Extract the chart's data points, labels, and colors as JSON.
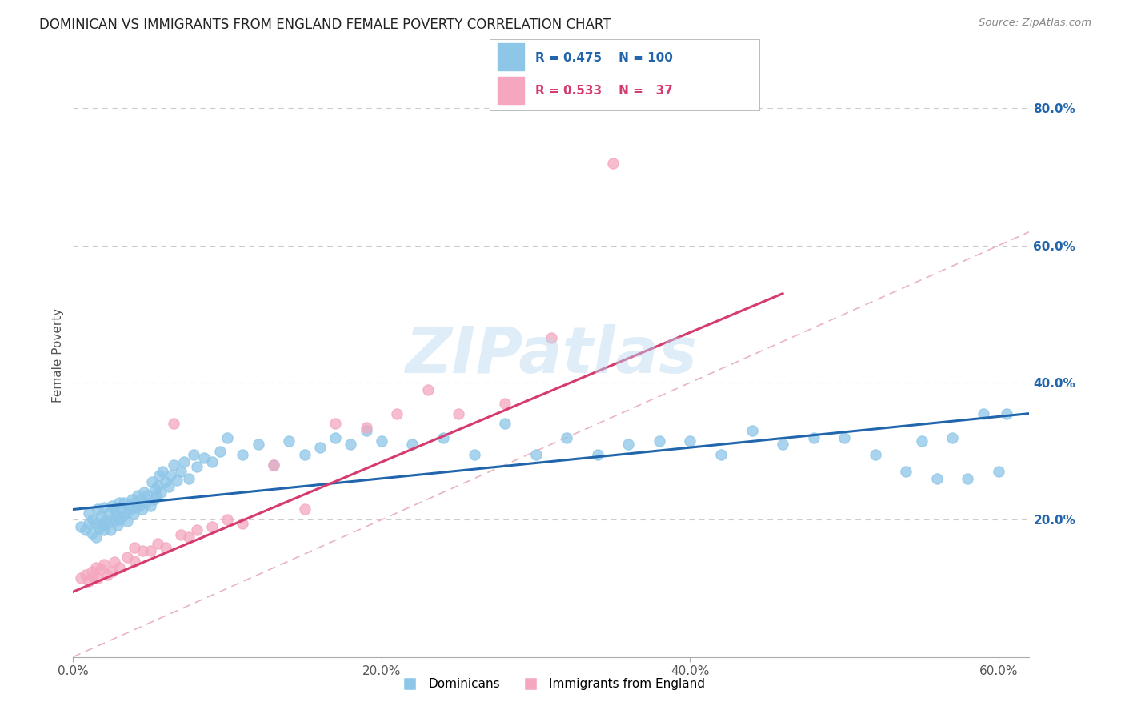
{
  "title": "DOMINICAN VS IMMIGRANTS FROM ENGLAND FEMALE POVERTY CORRELATION CHART",
  "source": "Source: ZipAtlas.com",
  "ylabel": "Female Poverty",
  "xlim": [
    0.0,
    0.62
  ],
  "ylim": [
    0.0,
    0.88
  ],
  "xtick_labels": [
    "0.0%",
    "20.0%",
    "40.0%",
    "60.0%"
  ],
  "xtick_vals": [
    0.0,
    0.2,
    0.4,
    0.6
  ],
  "ytick_labels": [
    "20.0%",
    "40.0%",
    "60.0%",
    "80.0%"
  ],
  "ytick_vals": [
    0.2,
    0.4,
    0.6,
    0.8
  ],
  "color_dominican": "#8ec6e8",
  "color_england": "#f4a7be",
  "line_color_dominican": "#2166ac",
  "line_color_england": "#d63b6e",
  "diagonal_color": "#e8b4c0",
  "R_dominican": 0.475,
  "N_dominican": 100,
  "R_england": 0.533,
  "N_england": 37,
  "legend_label_dominican": "Dominicans",
  "legend_label_england": "Immigrants from England",
  "watermark": "ZIPatlas",
  "dom_line_x0": 0.0,
  "dom_line_y0": 0.215,
  "dom_line_x1": 0.62,
  "dom_line_y1": 0.355,
  "eng_line_x0": 0.0,
  "eng_line_y0": 0.095,
  "eng_line_x1": 0.46,
  "eng_line_y1": 0.53,
  "dominican_x": [
    0.005,
    0.008,
    0.01,
    0.01,
    0.012,
    0.013,
    0.015,
    0.015,
    0.016,
    0.017,
    0.018,
    0.019,
    0.02,
    0.02,
    0.021,
    0.022,
    0.023,
    0.024,
    0.025,
    0.026,
    0.027,
    0.028,
    0.029,
    0.03,
    0.03,
    0.031,
    0.032,
    0.033,
    0.034,
    0.035,
    0.036,
    0.037,
    0.038,
    0.039,
    0.04,
    0.041,
    0.042,
    0.043,
    0.044,
    0.045,
    0.046,
    0.047,
    0.048,
    0.05,
    0.051,
    0.052,
    0.053,
    0.054,
    0.055,
    0.056,
    0.057,
    0.058,
    0.06,
    0.062,
    0.063,
    0.065,
    0.067,
    0.07,
    0.072,
    0.075,
    0.078,
    0.08,
    0.085,
    0.09,
    0.095,
    0.1,
    0.11,
    0.12,
    0.13,
    0.14,
    0.15,
    0.16,
    0.17,
    0.18,
    0.19,
    0.2,
    0.22,
    0.24,
    0.26,
    0.28,
    0.3,
    0.32,
    0.34,
    0.36,
    0.38,
    0.4,
    0.42,
    0.44,
    0.46,
    0.48,
    0.5,
    0.52,
    0.54,
    0.55,
    0.56,
    0.57,
    0.58,
    0.59,
    0.6,
    0.605
  ],
  "dominican_y": [
    0.19,
    0.185,
    0.195,
    0.21,
    0.18,
    0.2,
    0.175,
    0.195,
    0.215,
    0.188,
    0.205,
    0.192,
    0.185,
    0.218,
    0.2,
    0.195,
    0.21,
    0.185,
    0.22,
    0.198,
    0.215,
    0.205,
    0.192,
    0.2,
    0.225,
    0.215,
    0.205,
    0.225,
    0.21,
    0.198,
    0.22,
    0.215,
    0.23,
    0.208,
    0.225,
    0.218,
    0.235,
    0.22,
    0.23,
    0.215,
    0.24,
    0.225,
    0.235,
    0.22,
    0.255,
    0.23,
    0.245,
    0.235,
    0.25,
    0.265,
    0.24,
    0.27,
    0.255,
    0.248,
    0.265,
    0.28,
    0.258,
    0.27,
    0.285,
    0.26,
    0.295,
    0.278,
    0.29,
    0.285,
    0.3,
    0.32,
    0.295,
    0.31,
    0.28,
    0.315,
    0.295,
    0.305,
    0.32,
    0.31,
    0.33,
    0.315,
    0.31,
    0.32,
    0.295,
    0.34,
    0.295,
    0.32,
    0.295,
    0.31,
    0.315,
    0.315,
    0.295,
    0.33,
    0.31,
    0.32,
    0.32,
    0.295,
    0.27,
    0.315,
    0.26,
    0.32,
    0.26,
    0.355,
    0.27,
    0.355
  ],
  "england_x": [
    0.005,
    0.008,
    0.01,
    0.012,
    0.013,
    0.015,
    0.016,
    0.018,
    0.02,
    0.022,
    0.025,
    0.027,
    0.03,
    0.035,
    0.04,
    0.04,
    0.045,
    0.05,
    0.055,
    0.06,
    0.065,
    0.07,
    0.075,
    0.08,
    0.09,
    0.1,
    0.11,
    0.13,
    0.15,
    0.17,
    0.19,
    0.21,
    0.23,
    0.25,
    0.28,
    0.31,
    0.35
  ],
  "england_y": [
    0.115,
    0.12,
    0.11,
    0.125,
    0.118,
    0.13,
    0.115,
    0.128,
    0.135,
    0.12,
    0.125,
    0.138,
    0.13,
    0.145,
    0.14,
    0.16,
    0.155,
    0.155,
    0.165,
    0.16,
    0.34,
    0.178,
    0.175,
    0.185,
    0.19,
    0.2,
    0.195,
    0.28,
    0.215,
    0.34,
    0.335,
    0.355,
    0.39,
    0.355,
    0.37,
    0.465,
    0.72
  ]
}
